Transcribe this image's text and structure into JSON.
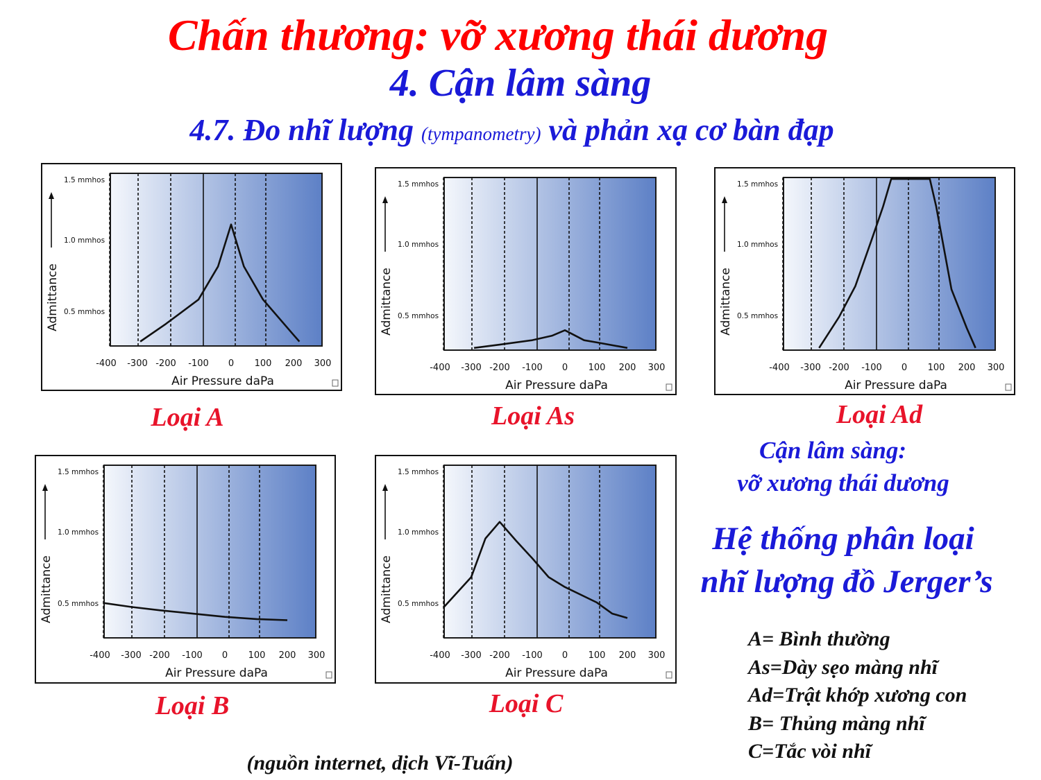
{
  "header": {
    "title": "Chấn thương: vỡ xương thái dương",
    "section": "4. Cận lâm sàng",
    "subsection_main": "4.7. Đo nhĩ lượng",
    "subsection_paren": "(tympanometry)",
    "subsection_tail": "và phản xạ cơ bàn đạp"
  },
  "axis_common": {
    "ylabel": "Admittance",
    "xlabel": "Air Pressure daPa",
    "ytick_labels": [
      "1.5 mmhos",
      "1.0 mmhos",
      "0.5 mmhos"
    ],
    "xtick_labels": [
      "-400",
      "-300",
      "-200",
      "-100",
      "0",
      "100",
      "200",
      "300"
    ]
  },
  "chart_data": [
    {
      "type": "line",
      "caption": "Loại A",
      "xlabel": "Air Pressure daPa",
      "ylabel": "Admittance",
      "xlim": [
        -400,
        300
      ],
      "ylim": [
        0,
        1.5
      ],
      "x": [
        -290,
        -200,
        -100,
        -40,
        0,
        40,
        100,
        200,
        220
      ],
      "y": [
        0.04,
        0.2,
        0.42,
        0.72,
        1.1,
        0.72,
        0.42,
        0.1,
        0.04
      ]
    },
    {
      "type": "line",
      "caption": "Loại As",
      "xlabel": "Air Pressure daPa",
      "ylabel": "Admittance",
      "xlim": [
        -400,
        300
      ],
      "ylim": [
        0,
        1.5
      ],
      "x": [
        -290,
        -200,
        -100,
        -40,
        0,
        60,
        100,
        200
      ],
      "y": [
        0.02,
        0.05,
        0.09,
        0.13,
        0.18,
        0.09,
        0.07,
        0.02
      ]
    },
    {
      "type": "line",
      "caption": "Loại Ad",
      "xlabel": "Air Pressure daPa",
      "ylabel": "Admittance",
      "xlim": [
        -400,
        300
      ],
      "ylim": [
        0,
        1.5
      ],
      "x": [
        -270,
        -200,
        -150,
        -100,
        -65,
        -40,
        80,
        100,
        150,
        200,
        230
      ],
      "y": [
        0.02,
        0.3,
        0.58,
        1.0,
        1.3,
        1.55,
        1.55,
        1.3,
        0.55,
        0.2,
        0.02
      ]
    },
    {
      "type": "line",
      "caption": "Loại B",
      "xlabel": "Air Pressure daPa",
      "ylabel": "Admittance",
      "xlim": [
        -400,
        300
      ],
      "ylim": [
        0,
        1.5
      ],
      "x": [
        -400,
        -300,
        -200,
        -100,
        0,
        100,
        200
      ],
      "y": [
        0.32,
        0.28,
        0.25,
        0.22,
        0.19,
        0.17,
        0.16
      ]
    },
    {
      "type": "line",
      "caption": "Loại C",
      "xlabel": "Air Pressure daPa",
      "ylabel": "Admittance",
      "xlim": [
        -400,
        300
      ],
      "ylim": [
        0,
        1.5
      ],
      "x": [
        -400,
        -300,
        -250,
        -200,
        -150,
        -100,
        -50,
        0,
        100,
        150,
        200
      ],
      "y": [
        0.24,
        0.55,
        0.9,
        1.05,
        0.88,
        0.72,
        0.55,
        0.46,
        0.32,
        0.22,
        0.18
      ]
    }
  ],
  "notes": {
    "clinical_line1": "Cận lâm sàng:",
    "clinical_line2": "vỡ xương thái dương",
    "system_line1": "Hệ thống phân loại",
    "system_line2": "nhĩ lượng đồ Jerger’s"
  },
  "legend_items": [
    "A= Bình thường",
    "As=Dày sẹo màng nhĩ",
    "Ad=Trật khớp xương con",
    "B= Thủng màng nhĩ",
    "C=Tắc vòi nhĩ"
  ],
  "source": "(nguồn internet, dịch Vĩ-Tuấn)",
  "colors": {
    "title": "#ff0000",
    "heading": "#1a1ad8",
    "caption": "#e8132a",
    "plot_gradient_start": "#f4f7fc",
    "plot_gradient_end": "#5d80c6"
  }
}
